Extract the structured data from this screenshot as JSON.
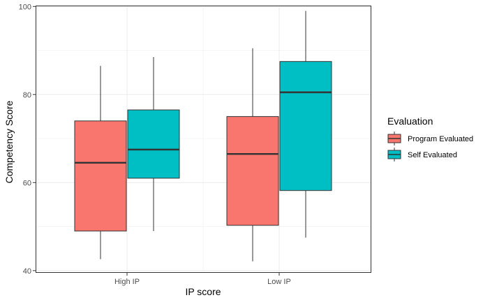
{
  "chart_data": {
    "type": "boxplot",
    "title": "",
    "xlabel": "IP score",
    "ylabel": "Competency Score",
    "ylim": [
      39.5,
      100.2
    ],
    "yticks": [
      40,
      60,
      80,
      100
    ],
    "grid": true,
    "categories": [
      "High IP",
      "Low IP"
    ],
    "legend": {
      "title": "Evaluation",
      "position": "right"
    },
    "series": [
      {
        "name": "Program Evaluated",
        "color": "#F8766D",
        "boxes": [
          {
            "category": "High IP",
            "min": 42.6,
            "q1": 49.0,
            "median": 64.5,
            "q3": 74.0,
            "max": 86.5
          },
          {
            "category": "Low IP",
            "min": 42.1,
            "q1": 50.3,
            "median": 66.5,
            "q3": 75.0,
            "max": 90.5
          }
        ]
      },
      {
        "name": "Self Evaluated",
        "color": "#00BFC4",
        "boxes": [
          {
            "category": "High IP",
            "min": 49.0,
            "q1": 61.0,
            "median": 67.5,
            "q3": 76.5,
            "max": 88.5
          },
          {
            "category": "Low IP",
            "min": 47.5,
            "q1": 58.2,
            "median": 80.5,
            "q3": 87.5,
            "max": 99.0
          }
        ]
      }
    ]
  }
}
